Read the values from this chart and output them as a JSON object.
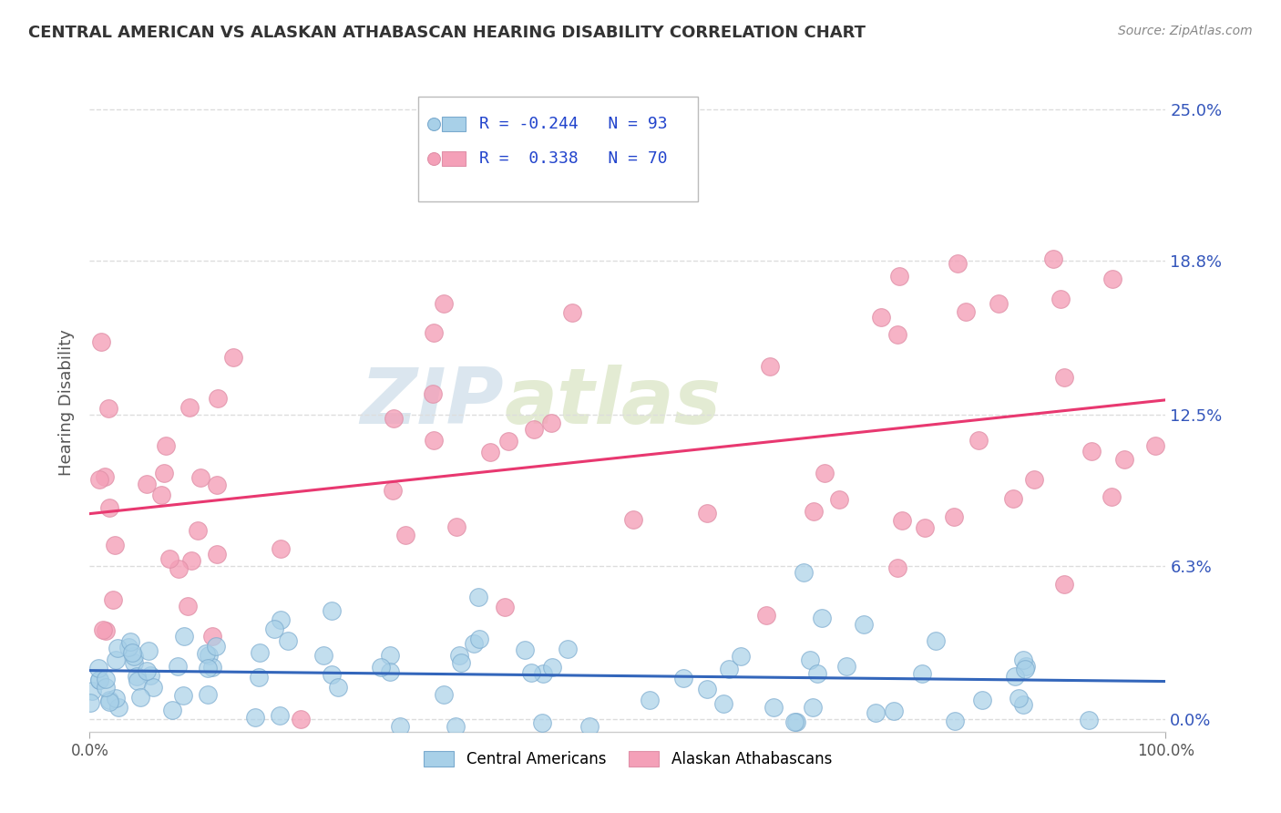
{
  "title": "CENTRAL AMERICAN VS ALASKAN ATHABASCAN HEARING DISABILITY CORRELATION CHART",
  "source": "Source: ZipAtlas.com",
  "ylabel": "Hearing Disability",
  "xlabel": "",
  "legend_label_1": "Central Americans",
  "legend_label_2": "Alaskan Athabascans",
  "r1": -0.244,
  "n1": 93,
  "r2": 0.338,
  "n2": 70,
  "color1": "#a8d0e8",
  "color2": "#f4a0b8",
  "line_color1": "#3366bb",
  "line_color2": "#e83870",
  "xlim": [
    0.0,
    1.0
  ],
  "ylim": [
    -0.005,
    0.265
  ],
  "yticks": [
    0.0,
    0.063,
    0.125,
    0.188,
    0.25
  ],
  "ytick_labels": [
    "0.0%",
    "6.3%",
    "12.5%",
    "18.8%",
    "25.0%"
  ],
  "xtick_labels": [
    "0.0%",
    "100.0%"
  ],
  "background_color": "#ffffff",
  "grid_color": "#dddddd",
  "watermark_zip": "ZIP",
  "watermark_atlas": "atlas",
  "title_fontsize": 13,
  "source_fontsize": 10,
  "ca_line_y0": 0.022,
  "ca_line_y1": 0.01,
  "aa_line_y0": 0.09,
  "aa_line_y1": 0.125
}
